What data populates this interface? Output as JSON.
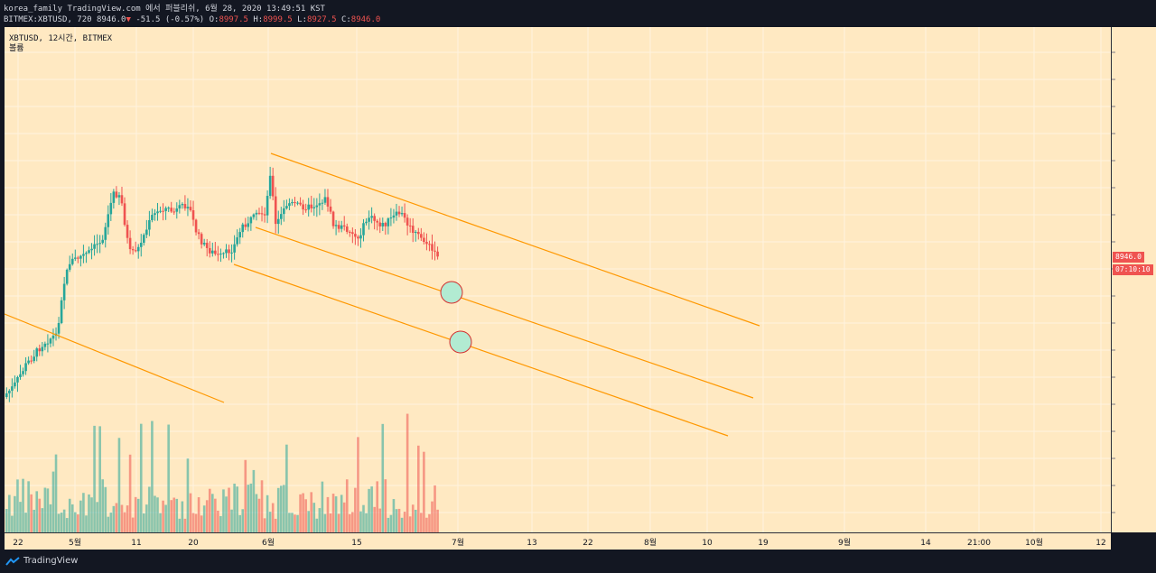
{
  "header": {
    "line1": "korea_family TradingView.com 에서 퍼블리쉬, 6월 28, 2020 13:49:51 KST",
    "symbol_line": "BITMEX:XBTUSD, 720 8946.0",
    "change_arrow": "▼",
    "change": "-51.5 (-0.57%)",
    "o_label": "O:",
    "o_value": "8997.5",
    "h_label": "H:",
    "h_value": "8999.5",
    "l_label": "L:",
    "l_value": "8927.5",
    "c_label": "C:",
    "c_value": "8946.0"
  },
  "legend": {
    "title": "XBTUSD, 12시간, BITMEX",
    "volume": "볼륨"
  },
  "price_tag": {
    "price": "8946.0",
    "countdown": "07:10:10"
  },
  "footer": {
    "brand": "TradingView"
  },
  "colors": {
    "background": "#ffe9c2",
    "up": "#26a69a",
    "down": "#ef5350",
    "trendline": "#ff9800",
    "marker_fill": "#b2ebd2"
  },
  "chart_data": {
    "type": "candlestick",
    "symbol": "BITMEX:XBTUSD",
    "interval": "12시간",
    "last_price": 8946.0,
    "open": 8997.5,
    "high": 8999.5,
    "low": 8927.5,
    "close": 8946.0,
    "change": -51.5,
    "change_pct": -0.57,
    "x_ticks": [
      "22",
      "5월",
      "11",
      "20",
      "6월",
      "15",
      "7월",
      "13",
      "22",
      "8월",
      "10",
      "19",
      "9월",
      "14",
      "21:00",
      "10월",
      "12"
    ],
    "overlays": [
      "descending parallel channel",
      "lower parallel trend line",
      "earlier falling trend line",
      "two circle markers on channel"
    ],
    "grid": true,
    "volume_pane": true
  }
}
